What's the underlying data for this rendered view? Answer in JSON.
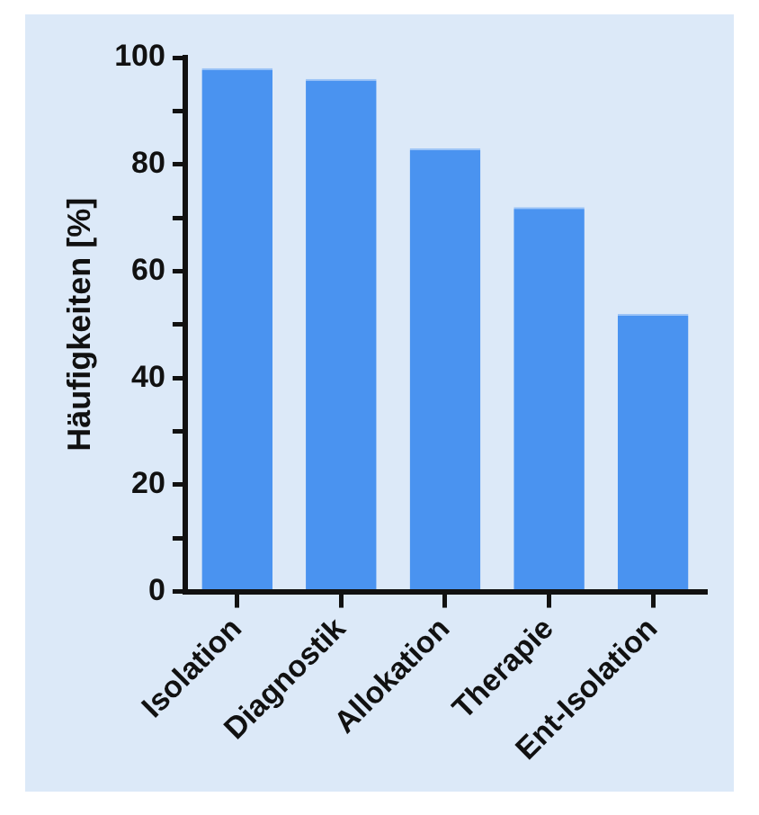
{
  "chart_data": {
    "type": "bar",
    "ylabel": "Häufigkeiten [%]",
    "categories": [
      "Isolation",
      "Diagnostik",
      "Allokation",
      "Therapie",
      "Ent-Isolation"
    ],
    "values": [
      98,
      96,
      83,
      72,
      52
    ],
    "color": "#4a93f0",
    "ylim": [
      0,
      100
    ],
    "yticks": [
      0,
      {
        "value": 10,
        "label": null
      },
      20,
      {
        "value": 30,
        "label": null
      },
      40,
      {
        "value": 50,
        "label": null
      },
      60,
      {
        "value": 70,
        "label": null
      },
      80,
      {
        "value": 90,
        "label": null
      },
      100
    ],
    "grid": false,
    "legend": false
  }
}
